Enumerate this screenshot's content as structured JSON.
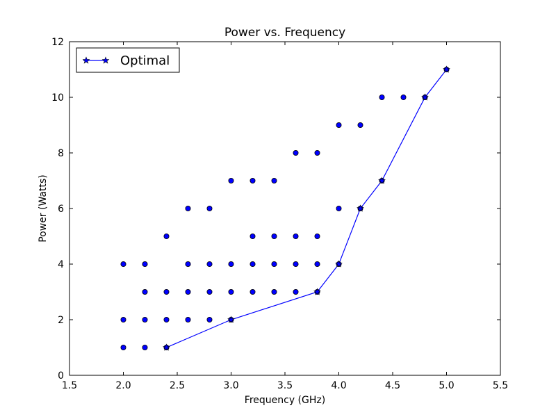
{
  "chart_data": {
    "type": "scatter",
    "title": "Power vs. Frequency",
    "xlabel": "Frequency (GHz)",
    "ylabel": "Power (Watts)",
    "xlim": [
      1.5,
      5.5
    ],
    "ylim": [
      0,
      12
    ],
    "xticks": [
      "1.5",
      "2.0",
      "2.5",
      "3.0",
      "3.5",
      "4.0",
      "4.5",
      "5.0",
      "5.5"
    ],
    "yticks": [
      "0",
      "2",
      "4",
      "6",
      "8",
      "10",
      "12"
    ],
    "grid": false,
    "legend_position": "top-left",
    "colors": {
      "marker": "#0000ff",
      "marker_edge": "#000000",
      "line": "#0000ff"
    },
    "scatter_points": [
      [
        2.0,
        1
      ],
      [
        2.0,
        2
      ],
      [
        2.0,
        4
      ],
      [
        2.2,
        1
      ],
      [
        2.2,
        2
      ],
      [
        2.2,
        3
      ],
      [
        2.2,
        4
      ],
      [
        2.4,
        1
      ],
      [
        2.4,
        2
      ],
      [
        2.4,
        3
      ],
      [
        2.4,
        5
      ],
      [
        2.6,
        2
      ],
      [
        2.6,
        3
      ],
      [
        2.6,
        4
      ],
      [
        2.6,
        6
      ],
      [
        2.8,
        2
      ],
      [
        2.8,
        3
      ],
      [
        2.8,
        4
      ],
      [
        2.8,
        6
      ],
      [
        3.0,
        2
      ],
      [
        3.0,
        3
      ],
      [
        3.0,
        4
      ],
      [
        3.0,
        7
      ],
      [
        3.2,
        3
      ],
      [
        3.2,
        4
      ],
      [
        3.2,
        5
      ],
      [
        3.2,
        7
      ],
      [
        3.4,
        3
      ],
      [
        3.4,
        4
      ],
      [
        3.4,
        5
      ],
      [
        3.4,
        7
      ],
      [
        3.6,
        3
      ],
      [
        3.6,
        4
      ],
      [
        3.6,
        5
      ],
      [
        3.6,
        8
      ],
      [
        3.8,
        3
      ],
      [
        3.8,
        4
      ],
      [
        3.8,
        5
      ],
      [
        3.8,
        8
      ],
      [
        4.0,
        4
      ],
      [
        4.0,
        6
      ],
      [
        4.0,
        9
      ],
      [
        4.2,
        6
      ],
      [
        4.2,
        9
      ],
      [
        4.4,
        7
      ],
      [
        4.4,
        10
      ],
      [
        4.6,
        10
      ],
      [
        4.8,
        10
      ],
      [
        5.0,
        11
      ]
    ],
    "series": [
      {
        "name": "Optimal",
        "marker": "star",
        "points": [
          [
            2.4,
            1
          ],
          [
            3.0,
            2
          ],
          [
            3.8,
            3
          ],
          [
            4.0,
            4
          ],
          [
            4.2,
            6
          ],
          [
            4.4,
            7
          ],
          [
            4.8,
            10
          ],
          [
            5.0,
            11
          ]
        ]
      }
    ]
  }
}
